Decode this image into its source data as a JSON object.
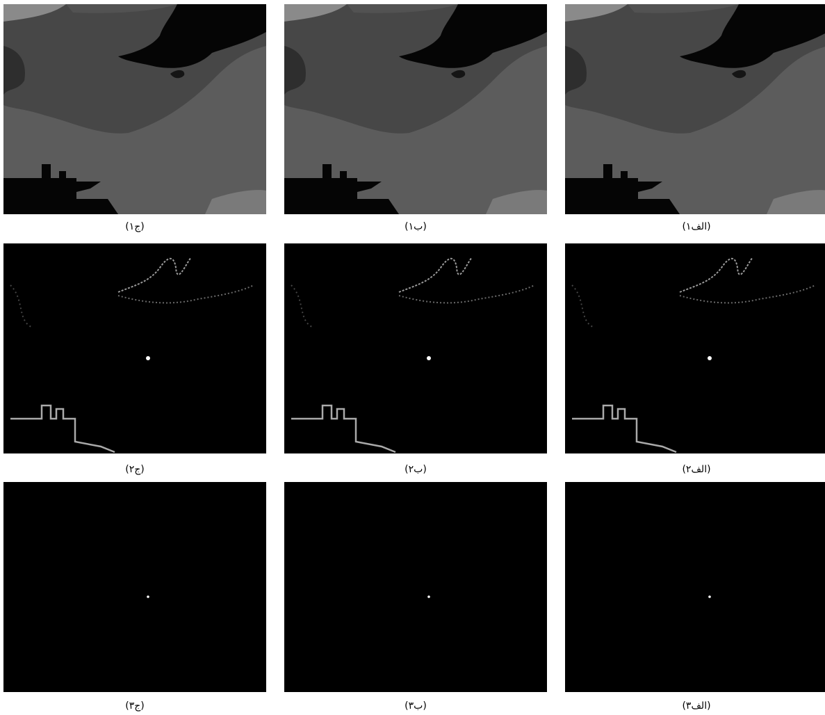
{
  "panels": [
    [
      {
        "caption": "(ج۱)"
      },
      {
        "caption": "(ب۱)"
      },
      {
        "caption": "(الف۱)"
      }
    ],
    [
      {
        "caption": "(ج۲)"
      },
      {
        "caption": "(ب۲)"
      },
      {
        "caption": "(الف۲)"
      }
    ],
    [
      {
        "caption": "(ج۳)"
      },
      {
        "caption": "(ب۳)"
      },
      {
        "caption": "(الف۳)"
      }
    ]
  ]
}
